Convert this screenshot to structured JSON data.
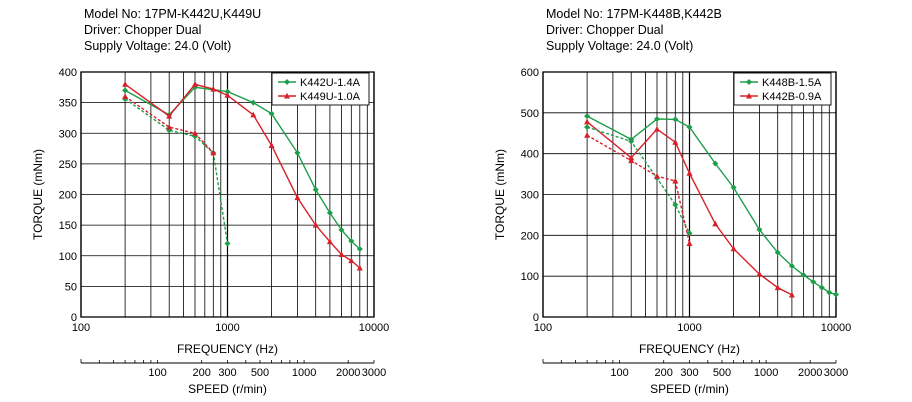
{
  "charts": [
    {
      "header": [
        "Model No: 17PM-K442U,K449U",
        "Driver: Chopper Dual",
        "Supply Voltage: 24.0 (Volt)"
      ],
      "chart_data": {
        "type": "line",
        "x_scale": "log",
        "xlim": [
          100,
          10000
        ],
        "ylim": [
          0,
          400
        ],
        "y_ticks": [
          0,
          50,
          100,
          150,
          200,
          250,
          300,
          350,
          400
        ],
        "x_ticks": [
          100,
          1000,
          10000
        ],
        "xlabel": "FREQUENCY (Hz)",
        "ylabel": "TORQUE (mNm)",
        "speed_axis": {
          "label": "SPEED (r/min)",
          "ticks": [
            100,
            200,
            300,
            500,
            1000,
            2000,
            3000
          ]
        },
        "legend_position": "top-right",
        "grid": true,
        "series": [
          {
            "name": "K442U-1.4A",
            "color": "#1e9e4a",
            "marker": "diamond",
            "style": "solid",
            "x": [
              200,
              400,
              600,
              1000,
              1500,
              2000,
              3000,
              4000,
              5000,
              6000,
              7000,
              8000
            ],
            "y": [
              370,
              330,
              375,
              368,
              350,
              332,
              268,
              208,
              170,
              142,
              124,
              111
            ]
          },
          {
            "name": "K449U-1.0A",
            "color": "#d8202a",
            "marker": "triangle",
            "style": "solid",
            "x": [
              200,
              400,
              600,
              800,
              1000,
              1500,
              2000,
              3000,
              4000,
              5000,
              6000,
              7000,
              8000
            ],
            "y": [
              380,
              328,
              380,
              372,
              362,
              330,
              280,
              195,
              150,
              123,
              102,
              92,
              80
            ]
          },
          {
            "color": "#1e9e4a",
            "marker": "diamond",
            "style": "dashed",
            "x": [
              200,
              400,
              600,
              800,
              1000
            ],
            "y": [
              356,
              305,
              295,
              268,
              120
            ]
          },
          {
            "color": "#d8202a",
            "marker": "triangle",
            "style": "dashed",
            "x": [
              200,
              400,
              600,
              800
            ],
            "y": [
              360,
              310,
              300,
              268
            ]
          }
        ]
      }
    },
    {
      "header": [
        "Model No: 17PM-K448B,K442B",
        "Driver: Chopper Dual",
        "Supply Voltage: 24.0 (Volt)"
      ],
      "chart_data": {
        "type": "line",
        "x_scale": "log",
        "xlim": [
          100,
          10000
        ],
        "ylim": [
          0,
          600
        ],
        "y_ticks": [
          0,
          100,
          200,
          300,
          400,
          500,
          600
        ],
        "x_ticks": [
          100,
          1000,
          10000
        ],
        "xlabel": "FREQUENCY (Hz)",
        "ylabel": "TORQUE (mNm)",
        "speed_axis": {
          "label": "SPEED (r/min)",
          "ticks": [
            100,
            200,
            300,
            500,
            1000,
            2000,
            3000
          ]
        },
        "legend_position": "top-right",
        "grid": true,
        "series": [
          {
            "name": "K448B-1.5A",
            "color": "#1e9e4a",
            "marker": "diamond",
            "style": "solid",
            "x": [
              200,
              400,
              600,
              800,
              1000,
              1500,
              2000,
              3000,
              4000,
              5000,
              6000,
              7000,
              8000,
              9000,
              10000
            ],
            "y": [
              492,
              435,
              485,
              484,
              465,
              376,
              317,
              214,
              158,
              125,
              103,
              86,
              72,
              60,
              55
            ]
          },
          {
            "name": "K442B-0.9A",
            "color": "#d8202a",
            "marker": "triangle",
            "style": "solid",
            "x": [
              200,
              400,
              600,
              800,
              1000,
              1500,
              2000,
              3000,
              4000,
              5000
            ],
            "y": [
              478,
              390,
              460,
              428,
              352,
              228,
              167,
              105,
              72,
              54
            ]
          },
          {
            "color": "#1e9e4a",
            "marker": "diamond",
            "style": "dashed",
            "x": [
              200,
              400,
              600,
              800,
              1000
            ],
            "y": [
              465,
              430,
              340,
              275,
              205
            ]
          },
          {
            "color": "#d8202a",
            "marker": "triangle",
            "style": "dashed",
            "x": [
              200,
              400,
              600,
              800,
              1000
            ],
            "y": [
              445,
              383,
              345,
              333,
              180
            ]
          }
        ]
      }
    }
  ]
}
